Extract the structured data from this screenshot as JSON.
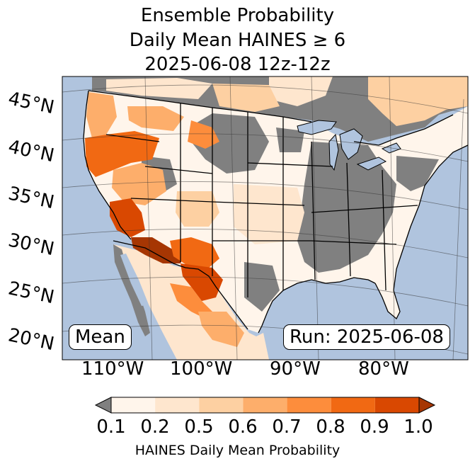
{
  "title": {
    "line1": "Ensemble Probability",
    "line2": "Daily Mean HAINES ≥ 6",
    "line3": "2025-06-08 12z-12z"
  },
  "map": {
    "latitude_labels": [
      "45°N",
      "40°N",
      "35°N",
      "30°N",
      "25°N",
      "20°N"
    ],
    "longitude_labels": [
      "110°W",
      "100°W",
      "90°W",
      "80°W"
    ],
    "mean_box": "Mean",
    "run_box": "Run: 2025-06-08",
    "colors": {
      "ocean": "#b0c4de",
      "land_missing": "#808080",
      "lakes": "#b0c4de"
    },
    "regions": [
      {
        "name": "pacific-northwest",
        "level": 0.6
      },
      {
        "name": "northern-california-oregon",
        "level": 0.8
      },
      {
        "name": "great-basin",
        "level": 0.6
      },
      {
        "name": "southern-nevada-arizona",
        "level": 0.9
      },
      {
        "name": "southern-arizona-new-mexico",
        "level": 1.0
      },
      {
        "name": "west-texas",
        "level": 0.9
      },
      {
        "name": "central-plains",
        "level": 0.2
      },
      {
        "name": "southern-canada",
        "level": 0.5
      },
      {
        "name": "eastern-us",
        "level": 0.1
      }
    ]
  },
  "colorbar": {
    "ticks": [
      "0.1",
      "0.2",
      "0.5",
      "0.6",
      "0.7",
      "0.8",
      "0.9",
      "1.0"
    ],
    "under_color": "#808080",
    "colors": [
      "#fff5eb",
      "#fee6ce",
      "#fdd0a2",
      "#fdae6b",
      "#fd8d3c",
      "#f16913",
      "#d94801",
      "#a63603"
    ],
    "label": "HAINES Daily Mean Probability"
  }
}
